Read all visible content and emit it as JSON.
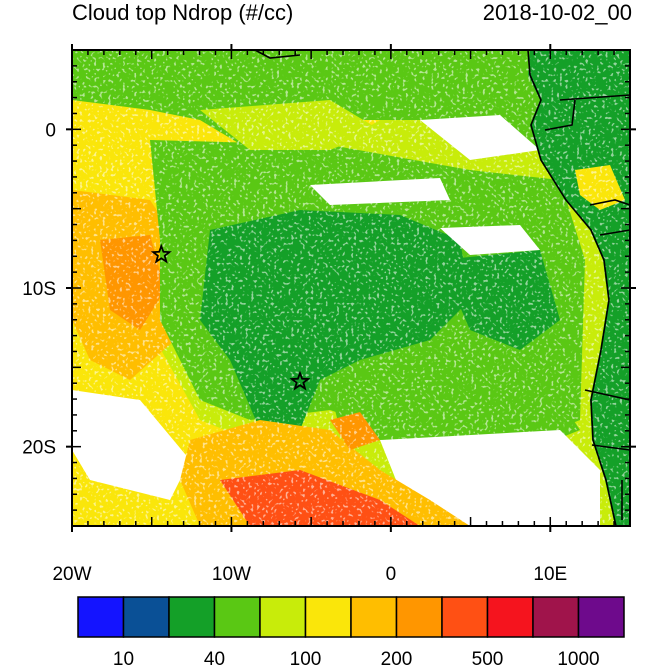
{
  "title": "Cloud top Ndrop (#/cc)",
  "timestamp": "2018-10-02_00",
  "map": {
    "lon_range": [
      -20,
      15
    ],
    "lat_range": [
      -25,
      5
    ],
    "x_ticks": [
      {
        "lon": -20,
        "label": "20W"
      },
      {
        "lon": -10,
        "label": "10W"
      },
      {
        "lon": 0,
        "label": "0"
      },
      {
        "lon": 10,
        "label": "10E"
      }
    ],
    "y_ticks": [
      {
        "lat": 0,
        "label": "0"
      },
      {
        "lat": -10,
        "label": "10S"
      },
      {
        "lat": -20,
        "label": "20S"
      }
    ],
    "markers": [
      {
        "name": "star",
        "lon": -14.4,
        "lat": -7.9
      },
      {
        "name": "star",
        "lon": -5.7,
        "lat": -15.9
      }
    ]
  },
  "colorbar": {
    "colors": [
      "#1414ff",
      "#0a5096",
      "#14a028",
      "#5ac814",
      "#c8ec0a",
      "#fae60a",
      "#ffbe00",
      "#ff9600",
      "#ff5014",
      "#f5141e",
      "#a0144b",
      "#6e0a8c"
    ],
    "labels": [
      {
        "boundary": 1,
        "text": "10"
      },
      {
        "boundary": 3,
        "text": "40"
      },
      {
        "boundary": 5,
        "text": "100"
      },
      {
        "boundary": 7,
        "text": "200"
      },
      {
        "boundary": 9,
        "text": "500"
      },
      {
        "boundary": 11,
        "text": "1000"
      }
    ]
  },
  "field_colors": {
    "white": "#ffffff",
    "ocean_core": "#14a028",
    "mid": "#5ac814",
    "outer": "#c8ec0a",
    "yellow": "#fae60a",
    "orange": "#ffbe00",
    "deep_orange": "#ff9600",
    "red": "#ff5014",
    "land_green": "#14a028",
    "coast": "#000000"
  }
}
